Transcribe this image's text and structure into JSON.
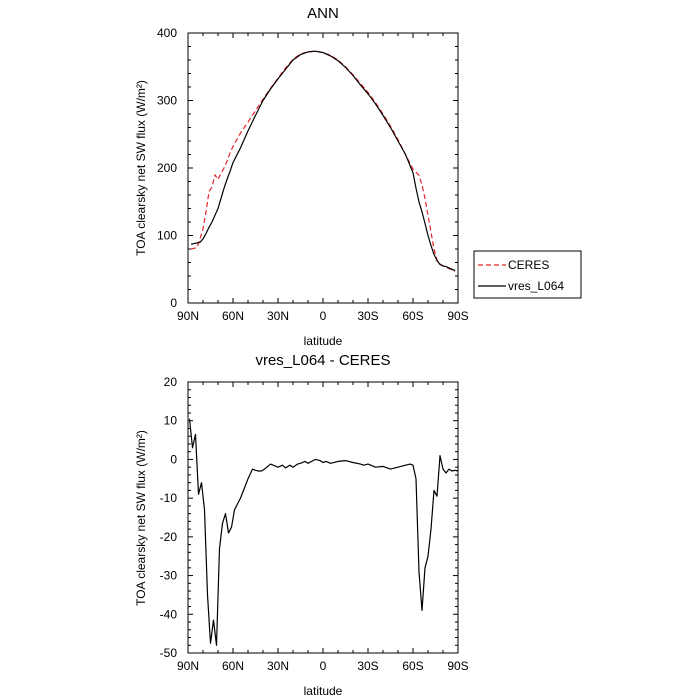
{
  "chart_data": [
    {
      "type": "line",
      "title": "ANN",
      "xlabel": "latitude",
      "ylabel": "TOA clearsky net SW flux (W/m²)",
      "xlim": [
        90,
        -90
      ],
      "ylim": [
        0,
        400
      ],
      "yticks": [
        0,
        100,
        200,
        300,
        400
      ],
      "xticks": [
        90,
        60,
        30,
        0,
        -30,
        -60,
        -90
      ],
      "xtick_labels": [
        "90N",
        "60N",
        "30N",
        "0",
        "30S",
        "60S",
        "90S"
      ],
      "legend": {
        "placement": "right"
      },
      "series": [
        {
          "name": "CERES",
          "color": "#e8242a",
          "dashed": true,
          "x": [
            88,
            86,
            84,
            82,
            80,
            78,
            76,
            74,
            72,
            70,
            68,
            66,
            64,
            62,
            60,
            55,
            50,
            45,
            40,
            35,
            30,
            25,
            20,
            15,
            10,
            5,
            0,
            -5,
            -10,
            -15,
            -20,
            -25,
            -30,
            -35,
            -40,
            -45,
            -50,
            -55,
            -60,
            -62,
            -64,
            -66,
            -68,
            -70,
            -72,
            -74,
            -76,
            -78,
            -80,
            -82,
            -84,
            -86,
            -88
          ],
          "y": [
            80,
            81,
            82,
            95,
            110,
            135,
            165,
            172,
            190,
            183,
            192,
            200,
            210,
            222,
            232,
            252,
            268,
            285,
            302,
            318,
            333,
            348,
            361,
            369,
            372,
            373,
            371,
            367,
            360,
            350,
            338,
            325,
            312,
            297,
            280,
            262,
            242,
            220,
            198,
            194,
            189,
            175,
            155,
            130,
            105,
            80,
            64,
            58,
            55,
            53,
            51,
            49,
            47
          ]
        },
        {
          "name": "vres_L064",
          "color": "#000000",
          "dashed": false,
          "x": [
            88,
            86,
            84,
            82,
            80,
            78,
            76,
            74,
            72,
            70,
            68,
            66,
            64,
            62,
            60,
            55,
            50,
            45,
            40,
            35,
            30,
            25,
            20,
            15,
            10,
            5,
            0,
            -5,
            -10,
            -15,
            -20,
            -25,
            -30,
            -35,
            -40,
            -45,
            -50,
            -55,
            -60,
            -62,
            -64,
            -66,
            -68,
            -70,
            -72,
            -74,
            -76,
            -78,
            -80,
            -82,
            -84,
            -86,
            -88
          ],
          "y": [
            87,
            88,
            89,
            90,
            95,
            103,
            112,
            120,
            130,
            140,
            155,
            170,
            183,
            195,
            208,
            230,
            255,
            278,
            300,
            317,
            332,
            346,
            360,
            368,
            372,
            373,
            371,
            366,
            359,
            349,
            337,
            323,
            310,
            295,
            278,
            260,
            240,
            220,
            193,
            170,
            150,
            135,
            118,
            100,
            85,
            72,
            63,
            57,
            55,
            54,
            52,
            50,
            48
          ]
        }
      ]
    },
    {
      "type": "line",
      "title": "vres_L064 - CERES",
      "xlabel": "latitude",
      "ylabel": "TOA clearsky net SW flux (W/m²)",
      "xlim": [
        90,
        -90
      ],
      "ylim": [
        -50,
        20
      ],
      "yticks": [
        -50,
        -40,
        -30,
        -20,
        -10,
        0,
        10,
        20
      ],
      "xticks": [
        90,
        60,
        30,
        0,
        -30,
        -60,
        -90
      ],
      "xtick_labels": [
        "90N",
        "60N",
        "30N",
        "0",
        "30S",
        "60S",
        "90S"
      ],
      "series": [
        {
          "name": "vres_L064 - CERES",
          "color": "#000000",
          "dashed": false,
          "x": [
            89,
            87,
            85,
            83,
            81,
            79,
            77,
            75,
            73,
            71,
            69,
            67,
            65,
            63,
            61,
            59,
            57,
            55,
            52,
            50,
            47,
            45,
            43,
            41,
            39,
            35,
            30,
            27,
            25,
            22,
            20,
            17,
            15,
            12,
            10,
            5,
            2,
            0,
            -2,
            -5,
            -10,
            -15,
            -20,
            -25,
            -27,
            -30,
            -35,
            -40,
            -45,
            -50,
            -55,
            -58,
            -60,
            -62,
            -64,
            -66,
            -68,
            -70,
            -72,
            -74,
            -76,
            -78,
            -80,
            -82,
            -84,
            -86,
            -88,
            -90
          ],
          "y": [
            10.5,
            3,
            6.5,
            -9,
            -6,
            -13,
            -35,
            -47.5,
            -41.5,
            -48,
            -23,
            -16.5,
            -14,
            -19,
            -17.5,
            -13,
            -11.5,
            -10,
            -7,
            -5,
            -2.5,
            -2.8,
            -3,
            -3,
            -2.5,
            -1.2,
            -2,
            -1.5,
            -2.2,
            -1.5,
            -2,
            -1.2,
            -1,
            -0.5,
            -1,
            0,
            -0.3,
            -0.8,
            -0.5,
            -1,
            -0.5,
            -0.3,
            -0.8,
            -1.2,
            -1.5,
            -1.2,
            -2,
            -1.8,
            -2.5,
            -2,
            -1.5,
            -1.2,
            -1.5,
            -5,
            -29,
            -39,
            -28,
            -25,
            -18,
            -8,
            -9.5,
            1,
            -2.5,
            -3.5,
            -2.5,
            -3,
            -2.8,
            -3
          ]
        }
      ]
    }
  ]
}
